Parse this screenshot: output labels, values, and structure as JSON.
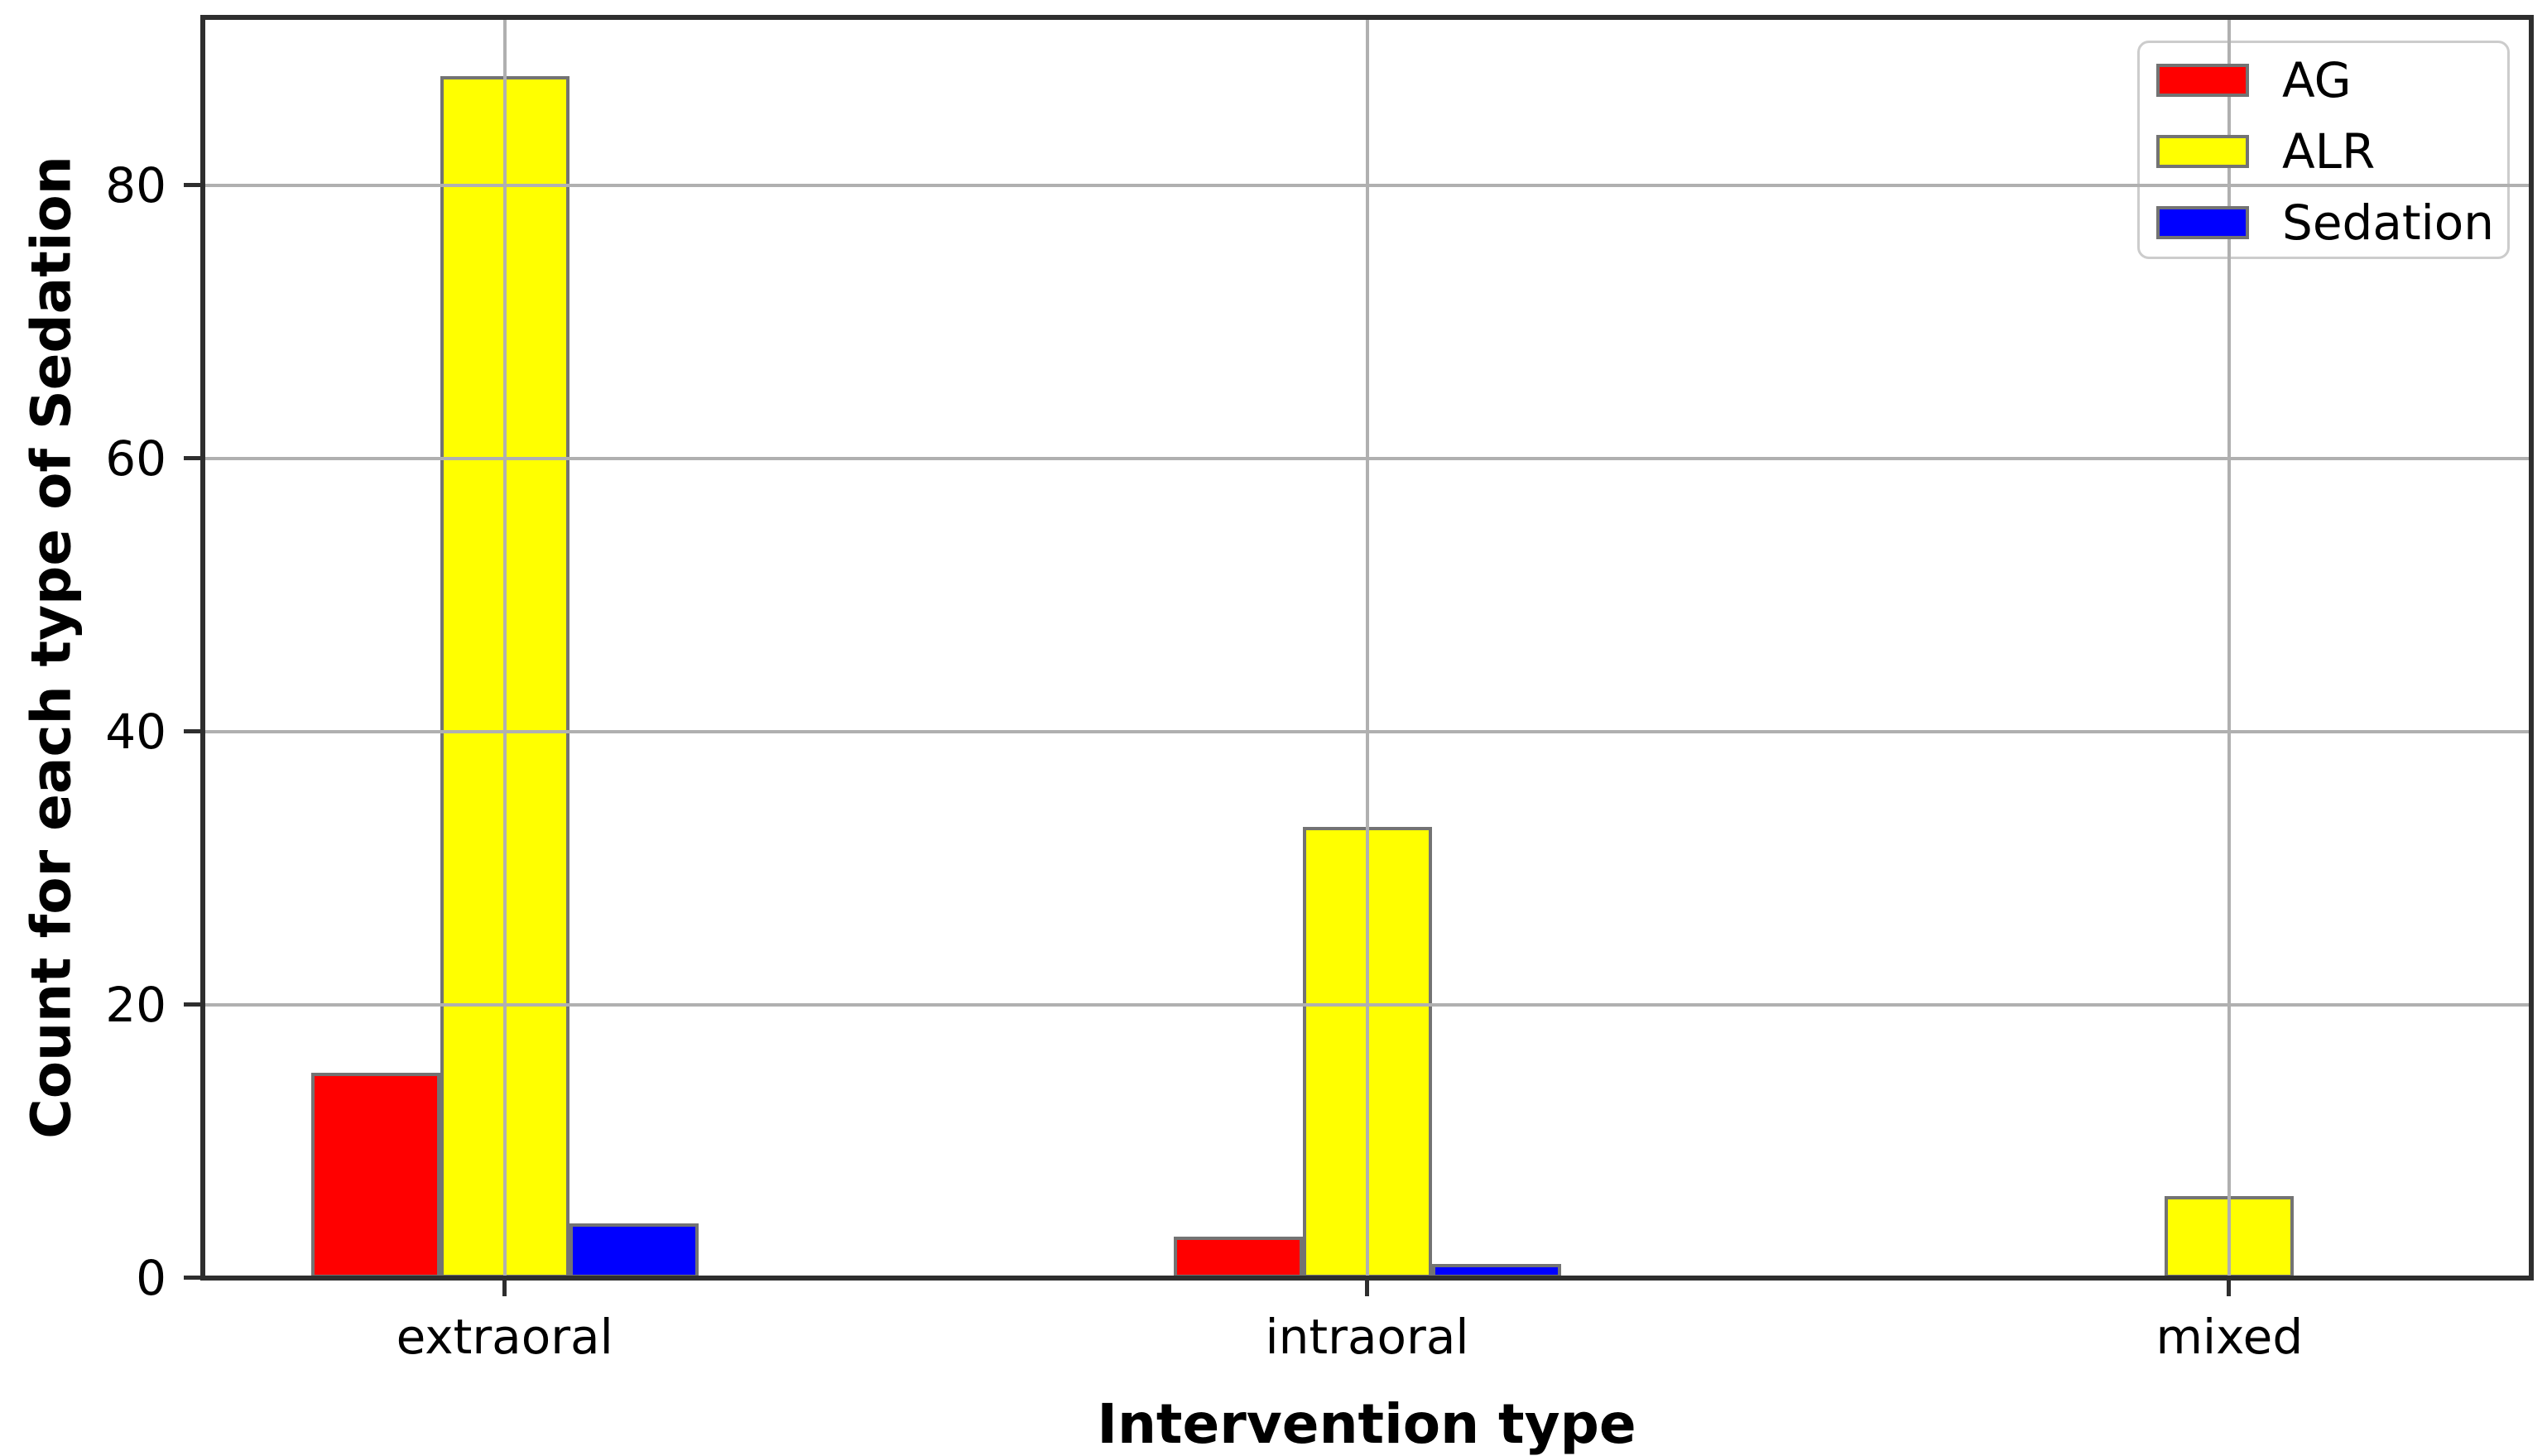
{
  "chart_data": {
    "type": "bar",
    "title": "",
    "xlabel": "Intervention type",
    "ylabel": "Count for each type of Sedation",
    "categories": [
      "extraoral",
      "intraoral",
      "mixed"
    ],
    "series": [
      {
        "name": "AG",
        "color": "#ff0000",
        "values": [
          15,
          3,
          0
        ]
      },
      {
        "name": "ALR",
        "color": "#ffff00",
        "values": [
          88,
          33,
          6
        ]
      },
      {
        "name": "Sedation",
        "color": "#0000ff",
        "values": [
          4,
          1,
          0
        ]
      }
    ],
    "y_ticks": [
      0,
      20,
      40,
      60,
      80
    ],
    "ylim": [
      0,
      92.3
    ],
    "xlim": [
      -0.35,
      2.35
    ],
    "grid": true,
    "grid_over_bars": true,
    "legend_position": "upper right",
    "bar_edge_color": "#737373",
    "grid_color": "#b0b0b0",
    "spine_color": "#2e2e2e",
    "legend_border_color": "#cccccc",
    "text_color": "#000000"
  }
}
